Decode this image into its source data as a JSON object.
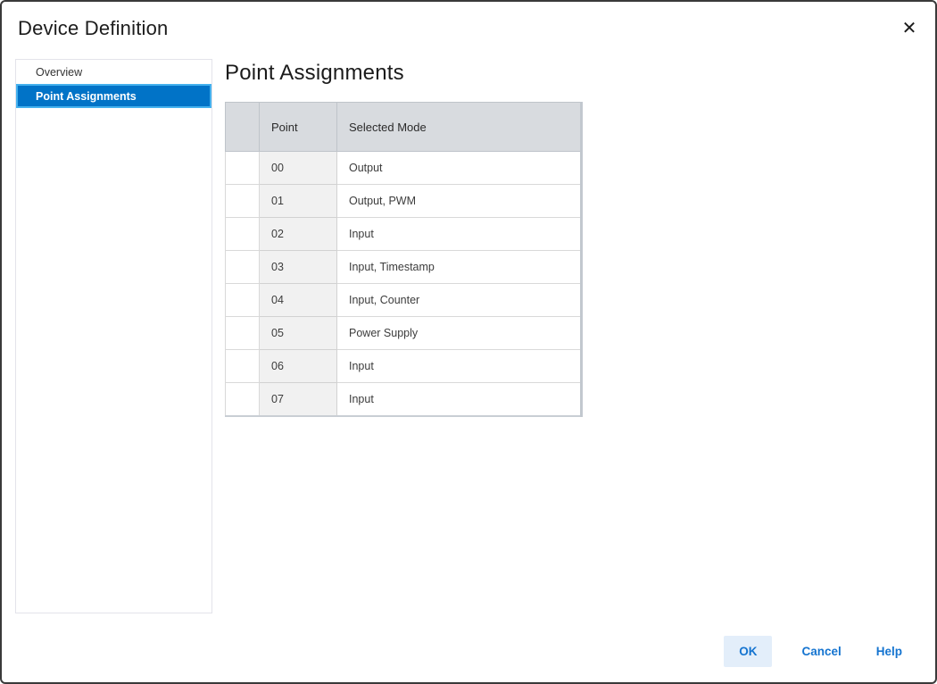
{
  "dialog": {
    "title": "Device Definition",
    "close_glyph": "✕"
  },
  "sidebar": {
    "items": [
      {
        "label": "Overview",
        "selected": false
      },
      {
        "label": "Point Assignments",
        "selected": true
      }
    ]
  },
  "content": {
    "heading": "Point Assignments",
    "table": {
      "columns": [
        "",
        "Point",
        "Selected Mode"
      ],
      "rows": [
        {
          "point": "00",
          "mode": "Output"
        },
        {
          "point": "01",
          "mode": "Output, PWM"
        },
        {
          "point": "02",
          "mode": "Input"
        },
        {
          "point": "03",
          "mode": "Input, Timestamp"
        },
        {
          "point": "04",
          "mode": "Input, Counter"
        },
        {
          "point": "05",
          "mode": "Power Supply"
        },
        {
          "point": "06",
          "mode": "Input"
        },
        {
          "point": "07",
          "mode": "Input"
        }
      ]
    }
  },
  "footer": {
    "ok_label": "OK",
    "cancel_label": "Cancel",
    "help_label": "Help"
  },
  "colors": {
    "accent": "#0173c7",
    "accent_light": "#44b1ee",
    "button_blue": "#1574d0",
    "ok_bg": "#e3eefa",
    "table_header_bg": "#d8dbdf",
    "point_column_bg": "#f1f1f1"
  }
}
